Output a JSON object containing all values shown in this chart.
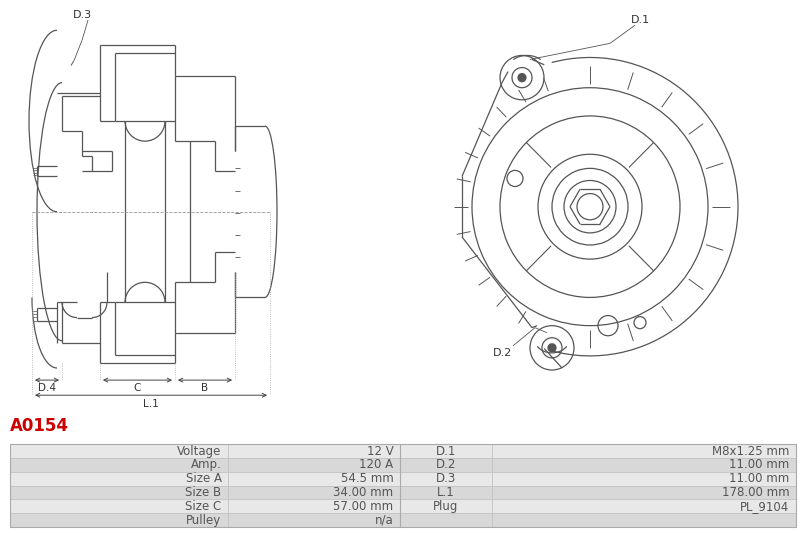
{
  "title_code": "A0154",
  "title_color": "#cc0000",
  "bg_color": "#ffffff",
  "table_rows": [
    [
      "Voltage",
      "12 V",
      "D.1",
      "M8x1.25 mm"
    ],
    [
      "Amp.",
      "120 A",
      "D.2",
      "11.00 mm"
    ],
    [
      "Size A",
      "54.5 mm",
      "D.3",
      "11.00 mm"
    ],
    [
      "Size B",
      "34.00 mm",
      "L.1",
      "178.00 mm"
    ],
    [
      "Size C",
      "57.00 mm",
      "Plug",
      "PL_9104"
    ],
    [
      "Pulley",
      "n/a",
      "",
      ""
    ]
  ],
  "lc": "#555555",
  "lw": 0.9,
  "dim_color": "#444444",
  "label_color": "#333333"
}
